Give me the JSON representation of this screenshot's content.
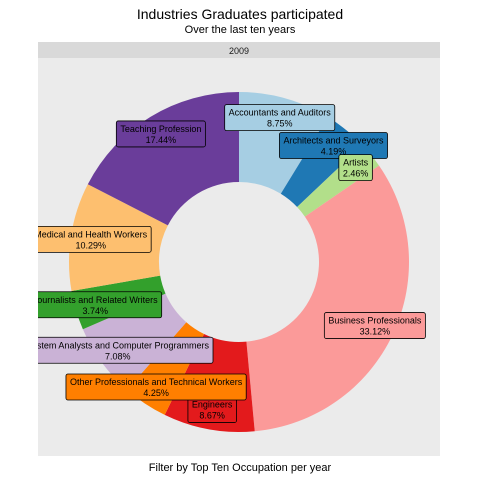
{
  "title": "Industries Graduates participated",
  "subtitle": "Over the last ten years",
  "caption": "Filter by Top Ten Occupation per year",
  "chart_data": {
    "type": "pie",
    "variant": "donut",
    "facet": "2009",
    "legend": "none",
    "slices": [
      {
        "name": "Accountants and Auditors",
        "label": "8.75%",
        "value": 8.75,
        "color": "#A6CEE3"
      },
      {
        "name": "Architects and Surveyors",
        "label": "4.19%",
        "value": 4.19,
        "color": "#1F78B4"
      },
      {
        "name": "Artists",
        "label": "2.46%",
        "value": 2.46,
        "color": "#B2DF8A"
      },
      {
        "name": "Business Professionals",
        "label": "33.12%",
        "value": 33.12,
        "color": "#FB9A99"
      },
      {
        "name": "Engineers",
        "label": "8.67%",
        "value": 8.67,
        "color": "#E31A1C"
      },
      {
        "name": "Other Professionals and Technical Workers",
        "label": "4.25%",
        "value": 4.25,
        "color": "#FF7F00"
      },
      {
        "name": "System Analysts and Computer Programmers",
        "label": "7.08%",
        "value": 7.08,
        "color": "#CAB2D6"
      },
      {
        "name": "Journalists and Related Writers",
        "label": "3.74%",
        "value": 3.74,
        "color": "#33A02C"
      },
      {
        "name": "Medical and Health Workers",
        "label": "10.29%",
        "value": 10.29,
        "color": "#FDBF6F"
      },
      {
        "name": "Teaching Profession",
        "label": "17.44%",
        "value": 17.44,
        "color": "#6A3D9A"
      }
    ]
  }
}
